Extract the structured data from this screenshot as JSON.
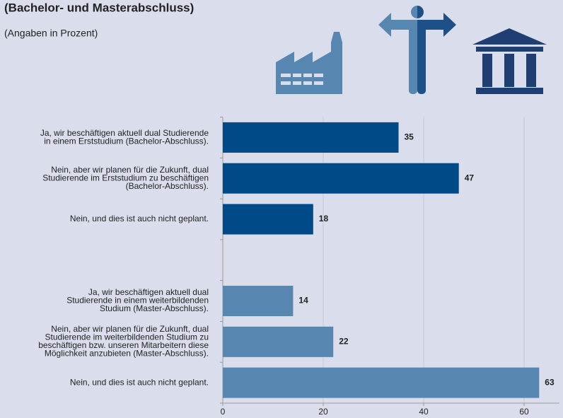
{
  "chart_data": {
    "type": "hbar",
    "title": "(Bachelor- und Masterabschluss)",
    "subtitle": "(Angaben in Prozent)",
    "categories": [
      [
        "Ja, wir beschäftigen aktuell dual Studierende",
        "in einem Erststudium (Bachelor-Abschluss)."
      ],
      [
        "Nein, aber wir planen für die Zukunft, dual",
        "Studierende im Erststudium zu beschäftigen",
        "(Bachelor-Abschluss)."
      ],
      [
        "Nein, und dies ist auch nicht geplant."
      ],
      null,
      [
        "Ja, wir beschäftigen aktuell dual",
        "Studierende in einem weiterbildenden",
        "Studium (Master-Abschluss)."
      ],
      [
        "Nein, aber wir planen für die Zukunft, dual",
        "Studierende im weiterbildenden Studium zu",
        "beschäftigen bzw. unseren Mitarbeitern diese",
        "Möglichkeit anzubieten (Master-Abschluss)."
      ],
      [
        "Nein, und dies ist auch nicht geplant."
      ]
    ],
    "values": [
      35,
      47,
      18,
      null,
      14,
      22,
      63
    ],
    "colors": [
      "#004a87",
      "#004a87",
      "#004a87",
      null,
      "#5786b0",
      "#5786b0",
      "#5786b0"
    ],
    "xlim": [
      0,
      67
    ],
    "xticks": [
      0,
      20,
      40,
      60
    ],
    "grid": true
  }
}
